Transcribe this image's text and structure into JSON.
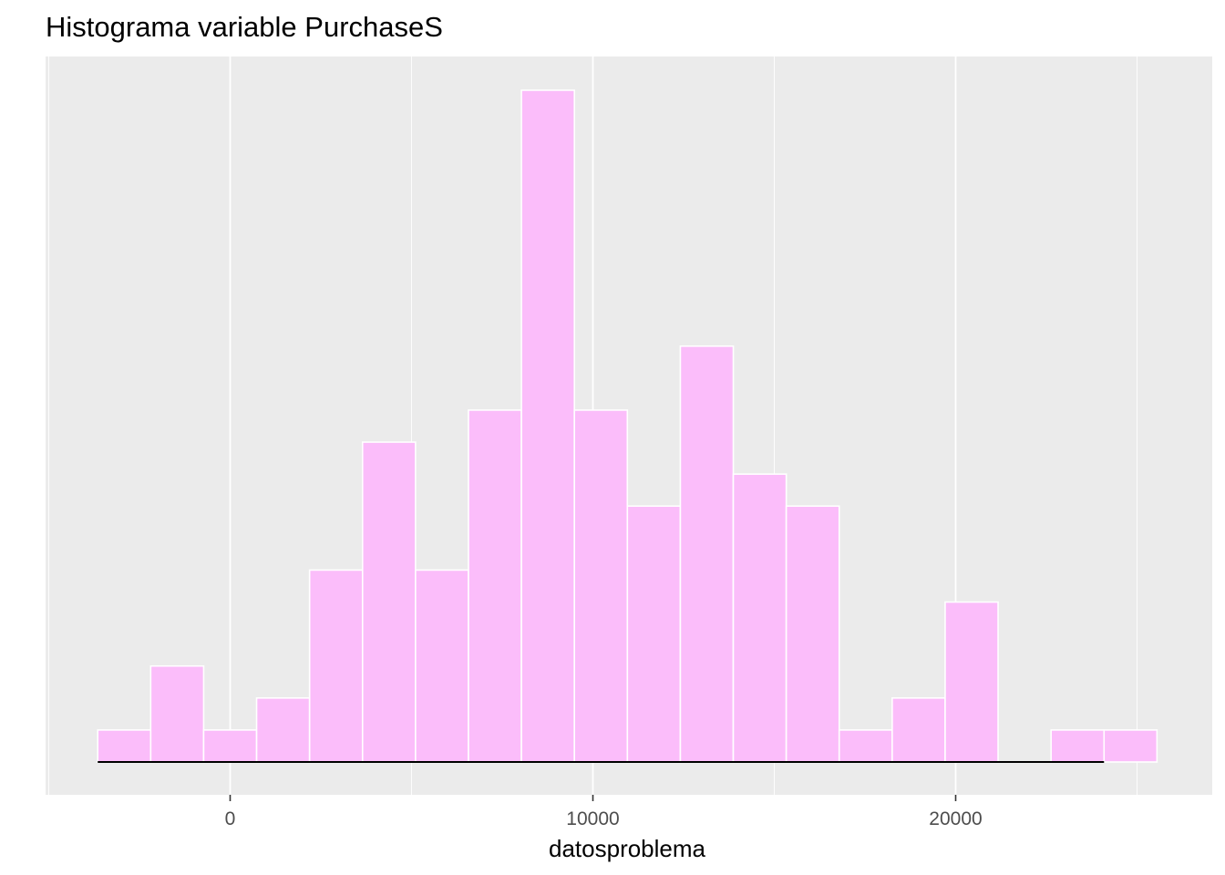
{
  "chart_data": {
    "type": "bar",
    "subtype": "histogram",
    "title": "Histograma variable PurchaseS",
    "xlabel": "datosproblema",
    "ylabel": "",
    "x_ticks": [
      0,
      10000,
      20000
    ],
    "x_tick_labels": [
      "0",
      "10000",
      "20000"
    ],
    "xlim": [
      -5000,
      27000
    ],
    "bin_width": 1460,
    "bins": [
      {
        "x0": -3650,
        "x1": -2190,
        "count": 1
      },
      {
        "x0": -2190,
        "x1": -730,
        "count": 3
      },
      {
        "x0": -730,
        "x1": 730,
        "count": 1
      },
      {
        "x0": 730,
        "x1": 2190,
        "count": 2
      },
      {
        "x0": 2190,
        "x1": 3650,
        "count": 6
      },
      {
        "x0": 3650,
        "x1": 5110,
        "count": 10
      },
      {
        "x0": 5110,
        "x1": 6570,
        "count": 6
      },
      {
        "x0": 6570,
        "x1": 8030,
        "count": 11
      },
      {
        "x0": 8030,
        "x1": 9490,
        "count": 21
      },
      {
        "x0": 9490,
        "x1": 10950,
        "count": 11
      },
      {
        "x0": 10950,
        "x1": 12410,
        "count": 8
      },
      {
        "x0": 12410,
        "x1": 13870,
        "count": 13
      },
      {
        "x0": 13870,
        "x1": 15330,
        "count": 9
      },
      {
        "x0": 15330,
        "x1": 16790,
        "count": 8
      },
      {
        "x0": 16790,
        "x1": 18250,
        "count": 1
      },
      {
        "x0": 18250,
        "x1": 19710,
        "count": 2
      },
      {
        "x0": 19710,
        "x1": 21170,
        "count": 5
      },
      {
        "x0": 21170,
        "x1": 22630,
        "count": 0
      },
      {
        "x0": 22630,
        "x1": 24090,
        "count": 1
      },
      {
        "x0": 24090,
        "x1": 25550,
        "count": 1
      }
    ],
    "baseline_segment": [
      -3650,
      24090
    ],
    "y_axis_labels_shown": false,
    "grid": true,
    "colors": {
      "panel": "#ebebeb",
      "grid": "#ffffff",
      "bar_fill": "#fbbdfa",
      "bar_stroke": "#ffffff",
      "baseline": "#000000"
    }
  }
}
